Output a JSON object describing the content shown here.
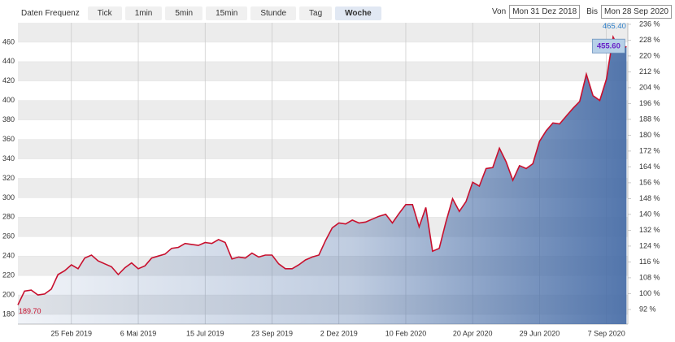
{
  "toolbar": {
    "label": "Daten Frequenz",
    "buttons": [
      {
        "label": "Tick"
      },
      {
        "label": "1min"
      },
      {
        "label": "5min"
      },
      {
        "label": "15min"
      },
      {
        "label": "Stunde"
      },
      {
        "label": "Tag"
      },
      {
        "label": "Woche",
        "active": true
      }
    ]
  },
  "range": {
    "from_label": "Von",
    "from": "Mon 31 Dez 2018",
    "to_label": "Bis",
    "to": "Mon 28 Sep 2020"
  },
  "chart_data": {
    "type": "area",
    "color": "#c8102e",
    "fill_color": "#4a6fa8",
    "x": [
      0,
      1,
      2,
      3,
      4,
      5,
      6,
      7,
      8,
      9,
      10,
      11,
      12,
      13,
      14,
      15,
      16,
      17,
      18,
      19,
      20,
      21,
      22,
      23,
      24,
      25,
      26,
      27,
      28,
      29,
      30,
      31,
      32,
      33,
      34,
      35,
      36,
      37,
      38,
      39,
      40,
      41,
      42,
      43,
      44,
      45,
      46,
      47,
      48,
      49,
      50,
      51,
      52,
      53,
      54,
      55,
      56,
      57,
      58,
      59,
      60,
      61,
      62,
      63,
      64,
      65,
      66,
      67,
      68,
      69,
      70,
      71,
      72,
      73,
      74,
      75,
      76,
      77,
      78,
      79,
      80,
      81,
      82,
      83,
      84,
      85,
      86,
      87,
      88,
      89,
      90,
      91
    ],
    "values": [
      189.7,
      204,
      205,
      200,
      201,
      206,
      221,
      225,
      231,
      227,
      238,
      241,
      235,
      232,
      229,
      221,
      228,
      233,
      227,
      230,
      238,
      240,
      242,
      248,
      249,
      253,
      252,
      251,
      254,
      253,
      257,
      254,
      237,
      239,
      238,
      243,
      239,
      241,
      241,
      232,
      227,
      227,
      231,
      236,
      239,
      241,
      256,
      269,
      274,
      273,
      277,
      274,
      275,
      278,
      281,
      283,
      274,
      284,
      293,
      293,
      270,
      290,
      245,
      248,
      275,
      299,
      286,
      296,
      316,
      312,
      330,
      331,
      351,
      337,
      318,
      333,
      330,
      335,
      358,
      369,
      377,
      376,
      384,
      392,
      399,
      427,
      405,
      400,
      422,
      465.4,
      452,
      455.6
    ],
    "annotations": [
      {
        "value": 189.7,
        "label": "189.70",
        "kind": "low"
      },
      {
        "value": 465.4,
        "label": "465.40",
        "kind": "high"
      },
      {
        "value": 455.6,
        "label": "455.60",
        "kind": "last"
      }
    ],
    "xlim": [
      0,
      91.2
    ],
    "xticks": [
      {
        "value": 8,
        "label": "25 Feb 2019"
      },
      {
        "value": 18,
        "label": "6 Mai 2019"
      },
      {
        "value": 28,
        "label": "15 Jul 2019"
      },
      {
        "value": 38,
        "label": "23 Sep 2019"
      },
      {
        "value": 48,
        "label": "2 Dez 2019"
      },
      {
        "value": 58,
        "label": "10 Feb 2020"
      },
      {
        "value": 68,
        "label": "20 Apr 2020"
      },
      {
        "value": 78,
        "label": "29 Jun 2020"
      },
      {
        "value": 88,
        "label": "7 Sep 2020"
      }
    ],
    "ylim": [
      170,
      480
    ],
    "yticks": [
      180,
      200,
      220,
      240,
      260,
      280,
      300,
      320,
      340,
      360,
      380,
      400,
      420,
      440,
      460
    ],
    "y2lim": [
      84.6,
      236.8
    ],
    "y2ticks": [
      {
        "value": 92,
        "label": "92 %"
      },
      {
        "value": 100,
        "label": "100 %"
      },
      {
        "value": 108,
        "label": "108 %"
      },
      {
        "value": 116,
        "label": "116 %"
      },
      {
        "value": 124,
        "label": "124 %"
      },
      {
        "value": 132,
        "label": "132 %"
      },
      {
        "value": 140,
        "label": "140 %"
      },
      {
        "value": 148,
        "label": "148 %"
      },
      {
        "value": 156,
        "label": "156 %"
      },
      {
        "value": 164,
        "label": "164 %"
      },
      {
        "value": 172,
        "label": "172 %"
      },
      {
        "value": 180,
        "label": "180 %"
      },
      {
        "value": 188,
        "label": "188 %"
      },
      {
        "value": 196,
        "label": "196 %"
      },
      {
        "value": 204,
        "label": "204 %"
      },
      {
        "value": 212,
        "label": "212 %"
      },
      {
        "value": 220,
        "label": "220 %"
      },
      {
        "value": 228,
        "label": "228 %"
      },
      {
        "value": 236,
        "label": "236 %"
      }
    ],
    "grid": true,
    "bands": true
  }
}
